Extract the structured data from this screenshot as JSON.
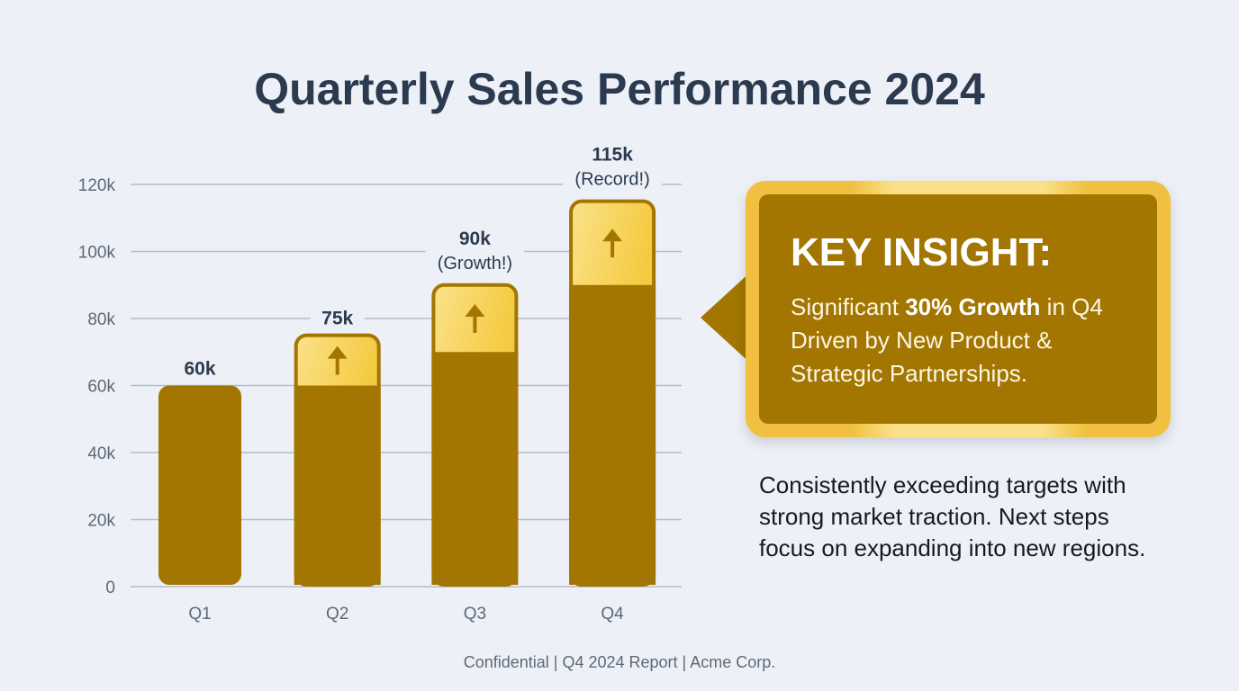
{
  "title": "Quarterly Sales Performance 2024",
  "chart_data": {
    "type": "bar",
    "stacked": true,
    "categories": [
      "Q1",
      "Q2",
      "Q3",
      "Q4"
    ],
    "series": [
      {
        "values": [
          60,
          60,
          70,
          90
        ],
        "color": "#a27600"
      },
      {
        "values": [
          0,
          15,
          20,
          25
        ],
        "color": "#f5cc45"
      }
    ],
    "totals": [
      60,
      75,
      90,
      115
    ],
    "data_labels": [
      {
        "value": "60k",
        "note": ""
      },
      {
        "value": "75k",
        "note": ""
      },
      {
        "value": "90k",
        "note": "(Growth!)"
      },
      {
        "value": "115k",
        "note": "(Record!)"
      }
    ],
    "increment_icon": "arrow-up-icon",
    "y_ticks": [
      0,
      20,
      40,
      60,
      80,
      100,
      120
    ],
    "y_tick_labels": [
      "0",
      "20k",
      "40k",
      "60k",
      "80k",
      "100k",
      "120k"
    ],
    "ylim": [
      0,
      120
    ],
    "unit": "k",
    "grid": true,
    "title": "",
    "xlabel": "",
    "ylabel": ""
  },
  "insight": {
    "title": "KEY INSIGHT:",
    "text_before": "Significant ",
    "text_bold": "30% Growth",
    "text_after": " in Q4 Driven by New Product & Strategic Partnerships."
  },
  "summary": "Consistently exceeding targets with strong market traction. Next steps focus on expanding into new regions.",
  "footer": "Confidential | Q4 2024 Report | Acme Corp.",
  "colors": {
    "background": "#edf1f7",
    "bar_base": "#a27600",
    "bar_increment": "#f5cc45",
    "title": "#2c3a4f"
  }
}
